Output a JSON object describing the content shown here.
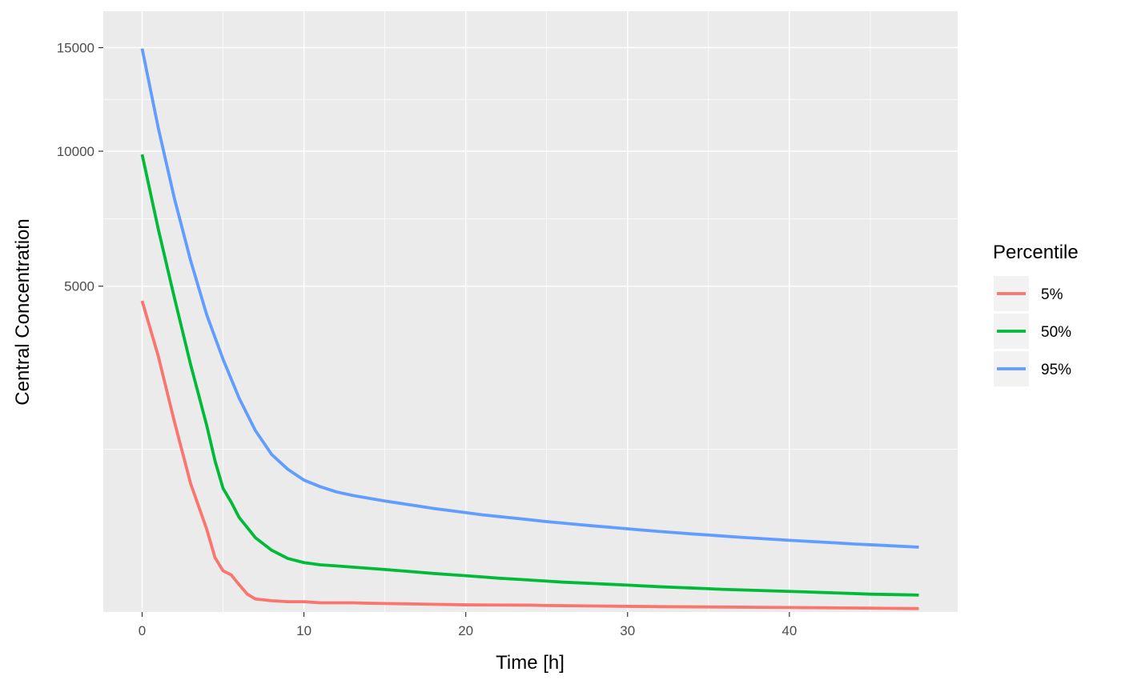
{
  "chart_data": {
    "type": "line",
    "xlabel": "Time [h]",
    "ylabel": "Central Concentration",
    "x_ticks": [
      0,
      10,
      20,
      30,
      40
    ],
    "y_ticks": [
      5000,
      10000,
      15000
    ],
    "xlim": [
      -2.4,
      50.4
    ],
    "ylim": [
      0,
      17000
    ],
    "y_scale": "sqrt",
    "grid": true,
    "legend": {
      "title": "Percentile",
      "position": "right"
    },
    "series": [
      {
        "name": "5%",
        "color": "#F8766D",
        "points": [
          [
            0,
            4560
          ],
          [
            1,
            3080
          ],
          [
            2,
            1700
          ],
          [
            3,
            775
          ],
          [
            4,
            320
          ],
          [
            4.5,
            140
          ],
          [
            5,
            80
          ],
          [
            5.5,
            65
          ],
          [
            6,
            35
          ],
          [
            6.5,
            15
          ],
          [
            7,
            8
          ],
          [
            8,
            6
          ],
          [
            9,
            5
          ],
          [
            10,
            5
          ],
          [
            11,
            4
          ],
          [
            12,
            4
          ],
          [
            13,
            4
          ],
          [
            14,
            3.6
          ],
          [
            15,
            3.4
          ],
          [
            16,
            3.2
          ],
          [
            17,
            3
          ],
          [
            18,
            2.8
          ],
          [
            19,
            2.6
          ],
          [
            20,
            2.4
          ],
          [
            22,
            2.3
          ],
          [
            24,
            2.2
          ],
          [
            25,
            2
          ],
          [
            26,
            1.9
          ],
          [
            27,
            1.8
          ],
          [
            28,
            1.7
          ],
          [
            29,
            1.6
          ],
          [
            30,
            1.5
          ],
          [
            31,
            1.45
          ],
          [
            32,
            1.35
          ],
          [
            33,
            1.3
          ],
          [
            34,
            1.25
          ],
          [
            35,
            1.2
          ],
          [
            36,
            1.15
          ],
          [
            37,
            1.1
          ],
          [
            38,
            1.05
          ],
          [
            39,
            1
          ],
          [
            40,
            0.95
          ],
          [
            41,
            0.9
          ],
          [
            42,
            0.85
          ],
          [
            43,
            0.8
          ],
          [
            44,
            0.75
          ],
          [
            45,
            0.7
          ],
          [
            46,
            0.65
          ],
          [
            47,
            0.6
          ],
          [
            48,
            0.55
          ]
        ]
      },
      {
        "name": "50%",
        "color": "#00BA38",
        "points": [
          [
            0,
            9860
          ],
          [
            1,
            6900
          ],
          [
            2,
            4640
          ],
          [
            3,
            2880
          ],
          [
            4,
            1630
          ],
          [
            4.5,
            1080
          ],
          [
            5,
            720
          ],
          [
            5.5,
            570
          ],
          [
            6,
            420
          ],
          [
            7,
            260
          ],
          [
            8,
            180
          ],
          [
            9,
            135
          ],
          [
            10,
            115
          ],
          [
            11,
            105
          ],
          [
            12,
            100
          ],
          [
            13,
            95
          ],
          [
            14,
            90
          ],
          [
            15,
            85
          ],
          [
            16,
            80
          ],
          [
            17,
            75
          ],
          [
            18,
            70
          ],
          [
            19,
            66
          ],
          [
            20,
            62
          ],
          [
            21,
            58
          ],
          [
            22,
            54
          ],
          [
            23,
            51
          ],
          [
            24,
            48
          ],
          [
            25,
            45
          ],
          [
            26,
            42
          ],
          [
            27,
            40
          ],
          [
            28,
            38
          ],
          [
            29,
            36
          ],
          [
            30,
            34
          ],
          [
            31,
            32
          ],
          [
            32,
            30
          ],
          [
            33,
            28.5
          ],
          [
            34,
            27
          ],
          [
            35,
            25.5
          ],
          [
            36,
            24
          ],
          [
            37,
            23
          ],
          [
            38,
            22
          ],
          [
            39,
            21
          ],
          [
            40,
            20
          ],
          [
            41,
            19
          ],
          [
            42,
            18
          ],
          [
            43,
            17
          ],
          [
            44,
            16
          ],
          [
            45,
            15
          ],
          [
            46,
            14.5
          ],
          [
            47,
            14
          ],
          [
            48,
            13.5
          ]
        ]
      },
      {
        "name": "95%",
        "color": "#619CFF",
        "points": [
          [
            0,
            14950
          ],
          [
            1,
            11030
          ],
          [
            2,
            8040
          ],
          [
            3,
            5810
          ],
          [
            4,
            4150
          ],
          [
            5,
            3010
          ],
          [
            6,
            2150
          ],
          [
            7,
            1550
          ],
          [
            8,
            1170
          ],
          [
            9,
            960
          ],
          [
            10,
            820
          ],
          [
            11,
            740
          ],
          [
            12,
            680
          ],
          [
            13,
            640
          ],
          [
            14,
            610
          ],
          [
            15,
            580
          ],
          [
            16,
            555
          ],
          [
            17,
            530
          ],
          [
            18,
            505
          ],
          [
            19,
            485
          ],
          [
            20,
            465
          ],
          [
            21,
            445
          ],
          [
            22,
            430
          ],
          [
            23,
            415
          ],
          [
            24,
            400
          ],
          [
            25,
            385
          ],
          [
            26,
            372
          ],
          [
            27,
            360
          ],
          [
            28,
            348
          ],
          [
            29,
            337
          ],
          [
            30,
            326
          ],
          [
            31,
            315
          ],
          [
            32,
            305
          ],
          [
            33,
            296
          ],
          [
            34,
            287
          ],
          [
            35,
            279
          ],
          [
            36,
            271
          ],
          [
            37,
            263
          ],
          [
            38,
            256
          ],
          [
            39,
            249
          ],
          [
            40,
            242
          ],
          [
            41,
            236
          ],
          [
            42,
            230
          ],
          [
            43,
            224
          ],
          [
            44,
            218
          ],
          [
            45,
            213
          ],
          [
            46,
            208
          ],
          [
            47,
            203
          ],
          [
            48,
            198
          ]
        ]
      }
    ]
  }
}
